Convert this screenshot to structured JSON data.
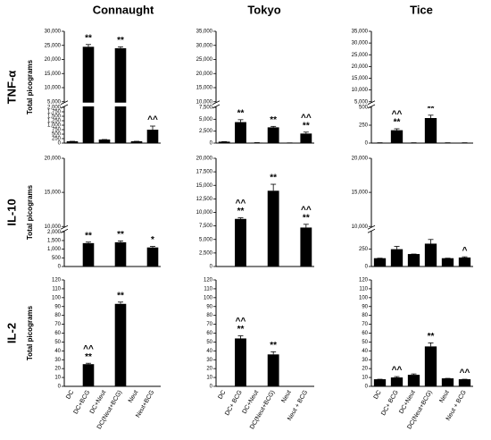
{
  "column_titles": [
    "Connaught",
    "Tokyo",
    "Tice"
  ],
  "rows": [
    {
      "label": "TNF-α",
      "y_label": "Total picograms"
    },
    {
      "label": "IL-10",
      "y_label": "Total picograms"
    },
    {
      "label": "IL-2",
      "y_label": "Total picograms"
    }
  ],
  "chart_data": [
    {
      "type": "bar",
      "color": "#000000",
      "segments": [
        {
          "ylim": [
            0,
            2000
          ],
          "yticks": [
            0,
            250,
            500,
            750,
            {
              "value": 1000,
              "label": "1,000"
            },
            {
              "value": 1250,
              "label": "1,250"
            },
            {
              "value": 1500,
              "label": "1,500"
            },
            {
              "value": 1750,
              "label": "1,750"
            },
            {
              "value": 2000,
              "label": "2,000"
            }
          ]
        },
        {
          "ylim": [
            5000,
            30000
          ],
          "yticks": [
            {
              "value": 5000,
              "label": "5,000"
            },
            {
              "value": 10000,
              "label": "10,000"
            },
            {
              "value": 15000,
              "label": "15,000"
            },
            {
              "value": 20000,
              "label": "20,000"
            },
            {
              "value": 25000,
              "label": "25,000"
            },
            {
              "value": 30000,
              "label": "30,000"
            }
          ]
        }
      ],
      "values": [
        100,
        24500,
        200,
        24000,
        100,
        750
      ],
      "errors": [
        0,
        800,
        0,
        500,
        0,
        200
      ],
      "annotations": [
        null,
        [
          "**"
        ],
        null,
        [
          "**"
        ],
        null,
        [
          "^^"
        ]
      ]
    },
    {
      "type": "bar",
      "color": "#000000",
      "segments": [
        {
          "ylim": [
            0,
            7500
          ],
          "yticks": [
            0,
            {
              "value": 2500,
              "label": "2,500"
            },
            {
              "value": 5000,
              "label": "5,000"
            },
            {
              "value": 7500,
              "label": "7,500"
            }
          ]
        },
        {
          "ylim": [
            10000,
            35000
          ],
          "yticks": [
            {
              "value": 10000,
              "label": "10,000"
            },
            {
              "value": 15000,
              "label": "15,000"
            },
            {
              "value": 20000,
              "label": "20,000"
            },
            {
              "value": 25000,
              "label": "25,000"
            },
            {
              "value": 30000,
              "label": "30,000"
            },
            {
              "value": 35000,
              "label": "35,000"
            }
          ]
        }
      ],
      "values": [
        300,
        4400,
        100,
        3300,
        50,
        2000
      ],
      "errors": [
        0,
        500,
        0,
        200,
        0,
        300
      ],
      "annotations": [
        null,
        [
          "**"
        ],
        null,
        [
          "**"
        ],
        null,
        [
          "^^",
          "**"
        ]
      ]
    },
    {
      "type": "bar",
      "color": "#000000",
      "segments": [
        {
          "ylim": [
            0,
            500
          ],
          "yticks": [
            0,
            250,
            500
          ]
        },
        {
          "ylim": [
            5000,
            35000
          ],
          "yticks": [
            {
              "value": 5000,
              "label": "5,000"
            },
            {
              "value": 10000,
              "label": "10,000"
            },
            {
              "value": 15000,
              "label": "15,000"
            },
            {
              "value": 20000,
              "label": "20,000"
            },
            {
              "value": 25000,
              "label": "25,000"
            },
            {
              "value": 30000,
              "label": "30,000"
            },
            {
              "value": 35000,
              "label": "35,000"
            }
          ]
        }
      ],
      "values": [
        5,
        180,
        5,
        350,
        5,
        5
      ],
      "errors": [
        0,
        20,
        0,
        40,
        0,
        0
      ],
      "annotations": [
        null,
        [
          "^^",
          "**"
        ],
        null,
        [
          "**"
        ],
        null,
        null
      ]
    },
    {
      "type": "bar",
      "color": "#000000",
      "segments": [
        {
          "ylim": [
            0,
            2000
          ],
          "yticks": [
            0,
            500,
            {
              "value": 1000,
              "label": "1,000"
            },
            {
              "value": 1500,
              "label": "1,500"
            },
            {
              "value": 2000,
              "label": "2,000"
            }
          ]
        },
        {
          "ylim": [
            10000,
            20000
          ],
          "yticks": [
            {
              "value": 10000,
              "label": "10,000"
            },
            {
              "value": 15000,
              "label": "15,000"
            },
            {
              "value": 20000,
              "label": "20,000"
            }
          ]
        }
      ],
      "values": [
        0,
        1350,
        0,
        1400,
        0,
        1100
      ],
      "errors": [
        0,
        60,
        0,
        80,
        0,
        60
      ],
      "annotations": [
        null,
        [
          "**"
        ],
        null,
        [
          "**"
        ],
        null,
        [
          "*"
        ]
      ]
    },
    {
      "type": "bar",
      "color": "#000000",
      "segments": [
        {
          "ylim": [
            0,
            20000
          ],
          "yticks": [
            0,
            {
              "value": 2500,
              "label": "2,500"
            },
            {
              "value": 5000,
              "label": "5,000"
            },
            {
              "value": 7500,
              "label": "7,500"
            },
            {
              "value": 10000,
              "label": "10,000"
            },
            {
              "value": 12500,
              "label": "12,500"
            },
            {
              "value": 15000,
              "label": "15,000"
            },
            {
              "value": 17500,
              "label": "17,500"
            },
            {
              "value": 20000,
              "label": "20,000"
            }
          ]
        }
      ],
      "values": [
        0,
        8800,
        0,
        14000,
        0,
        7200
      ],
      "errors": [
        0,
        200,
        0,
        1200,
        0,
        600
      ],
      "annotations": [
        null,
        [
          "^^",
          "**"
        ],
        null,
        [
          "**"
        ],
        null,
        [
          "^^",
          "**"
        ]
      ]
    },
    {
      "type": "bar",
      "color": "#000000",
      "segments": [
        {
          "ylim": [
            0,
            500
          ],
          "yticks": [
            0,
            250
          ]
        },
        {
          "ylim": [
            10000,
            20000
          ],
          "yticks": [
            {
              "value": 10000,
              "label": "10,000"
            },
            {
              "value": 15000,
              "label": "15,000"
            },
            {
              "value": 20000,
              "label": "20,000"
            }
          ]
        }
      ],
      "values": [
        120,
        250,
        180,
        330,
        120,
        130
      ],
      "errors": [
        0,
        40,
        0,
        60,
        0,
        10
      ],
      "annotations": [
        null,
        null,
        null,
        null,
        null,
        [
          "^"
        ]
      ]
    },
    {
      "type": "bar",
      "color": "#000000",
      "categories": [
        "DC",
        "DC+BCG",
        "DC+Neut",
        "DC(Neut+BCG)",
        "Neut",
        "Neut+BCG"
      ],
      "segments": [
        {
          "ylim": [
            0,
            120
          ],
          "yticks": [
            0,
            10,
            20,
            30,
            40,
            50,
            60,
            70,
            80,
            90,
            100,
            110,
            120
          ]
        }
      ],
      "values": [
        0,
        25,
        0,
        93,
        0,
        0
      ],
      "errors": [
        0,
        1,
        0,
        2,
        0,
        0
      ],
      "annotations": [
        null,
        [
          "^^",
          "**"
        ],
        null,
        [
          "**"
        ],
        null,
        null
      ]
    },
    {
      "type": "bar",
      "color": "#000000",
      "categories": [
        "DC",
        "DC+ BCG",
        "DC+Neut",
        "DC(Neut+BCG)",
        "Neut",
        "Neut + BCG"
      ],
      "segments": [
        {
          "ylim": [
            0,
            120
          ],
          "yticks": [
            0,
            10,
            20,
            30,
            40,
            50,
            60,
            70,
            80,
            90,
            100,
            110,
            120
          ]
        }
      ],
      "values": [
        0,
        54,
        0,
        36,
        0,
        0
      ],
      "errors": [
        0,
        3,
        0,
        3,
        0,
        0
      ],
      "annotations": [
        null,
        [
          "^^",
          "**"
        ],
        null,
        [
          "**"
        ],
        null,
        null
      ]
    },
    {
      "type": "bar",
      "color": "#000000",
      "categories": [
        "DC",
        "DC+ BCG",
        "DC+Neut",
        "DC(Neut+BCG)",
        "Neut",
        "Neut + BCG"
      ],
      "segments": [
        {
          "ylim": [
            0,
            120
          ],
          "yticks": [
            0,
            10,
            20,
            30,
            40,
            50,
            60,
            70,
            80,
            90,
            100,
            110,
            120
          ]
        }
      ],
      "values": [
        8,
        10,
        13,
        45,
        9,
        8
      ],
      "errors": [
        0,
        1,
        1,
        4,
        0,
        0
      ],
      "annotations": [
        null,
        [
          "^^"
        ],
        null,
        [
          "**"
        ],
        null,
        [
          "^^"
        ]
      ]
    }
  ]
}
